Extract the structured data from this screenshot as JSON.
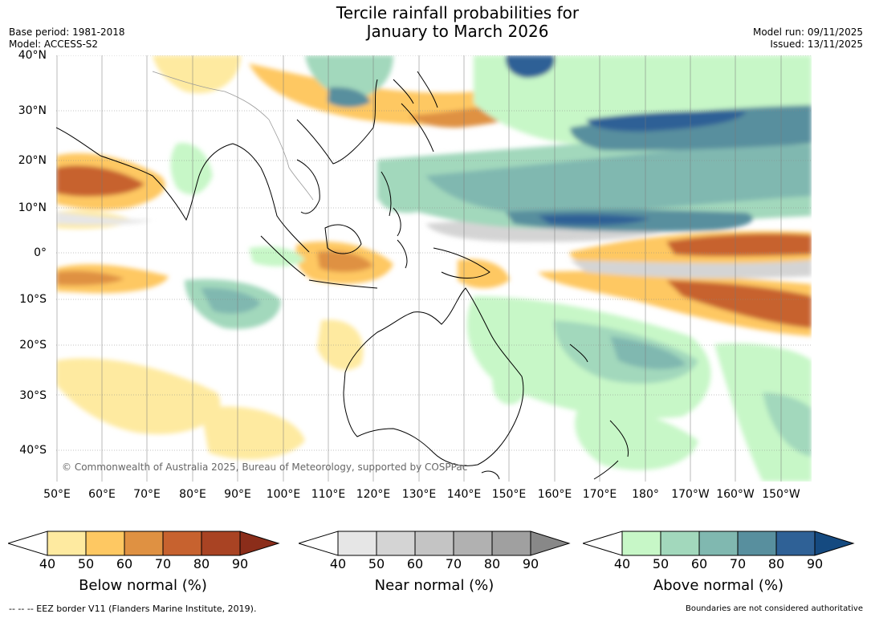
{
  "title": {
    "line1": "Tercile rainfall probabilities for",
    "line2": "January to March 2026"
  },
  "meta": {
    "base_period": "Base period: 1981-2018",
    "model": "Model: ACCESS-S2",
    "model_run": "Model run: 09/11/2025",
    "issued": "Issued: 13/11/2025"
  },
  "map": {
    "lat_labels": [
      "40°N",
      "30°N",
      "20°N",
      "10°N",
      "0°",
      "10°S",
      "20°S",
      "30°S",
      "40°S"
    ],
    "lon_labels": [
      "50°E",
      "60°E",
      "70°E",
      "80°E",
      "90°E",
      "100°E",
      "110°E",
      "120°E",
      "130°E",
      "140°E",
      "150°E",
      "160°E",
      "170°E",
      "180°",
      "170°W",
      "160°W",
      "150°W"
    ],
    "copyright": "© Commonwealth of Australia 2025, Bureau of Meteorology, supported by COSPPac"
  },
  "colorbars": {
    "below": {
      "label": "Below normal (%)",
      "ticks": [
        "40",
        "50",
        "60",
        "70",
        "80",
        "90"
      ],
      "colors": [
        "#ffffff",
        "#feeaa0",
        "#fec862",
        "#df9142",
        "#c7622f",
        "#a94323",
        "#8b2d1a"
      ]
    },
    "near": {
      "label": "Near normal (%)",
      "ticks": [
        "40",
        "50",
        "60",
        "70",
        "80",
        "90"
      ],
      "colors": [
        "#ffffff",
        "#e6e6e6",
        "#d4d4d4",
        "#c4c4c4",
        "#b1b1b1",
        "#a0a0a0",
        "#888888"
      ]
    },
    "above": {
      "label": "Above normal (%)",
      "ticks": [
        "40",
        "50",
        "60",
        "70",
        "80",
        "90"
      ],
      "colors": [
        "#ffffff",
        "#c7f7c7",
        "#a2d8bc",
        "#80b8b0",
        "#588f9e",
        "#2f6196",
        "#154a80"
      ]
    }
  },
  "footer": {
    "eez": "--  --  -- EEZ border V11 (Flanders Marine Institute, 2019).",
    "disclaimer": "Boundaries are not considered authoritative"
  }
}
